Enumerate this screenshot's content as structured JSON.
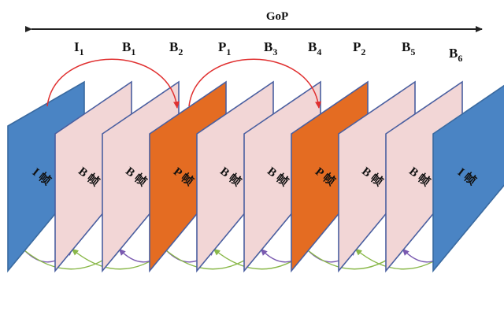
{
  "gop_label": "GoP",
  "frames": [
    {
      "id": "I",
      "sub": "1",
      "kind": "I",
      "label": "I 帧"
    },
    {
      "id": "B",
      "sub": "1",
      "kind": "B",
      "label": "B 帧"
    },
    {
      "id": "B",
      "sub": "2",
      "kind": "B",
      "label": "B 帧"
    },
    {
      "id": "P",
      "sub": "1",
      "kind": "P",
      "label": "P 帧"
    },
    {
      "id": "B",
      "sub": "3",
      "kind": "B",
      "label": "B 帧"
    },
    {
      "id": "B",
      "sub": "4",
      "kind": "B",
      "label": "B 帧"
    },
    {
      "id": "P",
      "sub": "2",
      "kind": "P",
      "label": "P 帧"
    },
    {
      "id": "B",
      "sub": "5",
      "kind": "B",
      "label": "B 帧"
    },
    {
      "id": "B",
      "sub": "6",
      "kind": "B",
      "label": "B 帧"
    },
    {
      "id": "",
      "sub": "",
      "kind": "I",
      "label": "I 帧"
    }
  ],
  "colors": {
    "I": "#4a84c4",
    "B": "#f2d6d6",
    "P": "#e46c22",
    "edge_I": "#3a6aa0",
    "edge_B": "#4a5fa0",
    "edge_P": "#4a5fa0",
    "ref_P": "#e03030",
    "ref_B_back": "#7a5ab0",
    "ref_B_fwd": "#8ab84a"
  }
}
